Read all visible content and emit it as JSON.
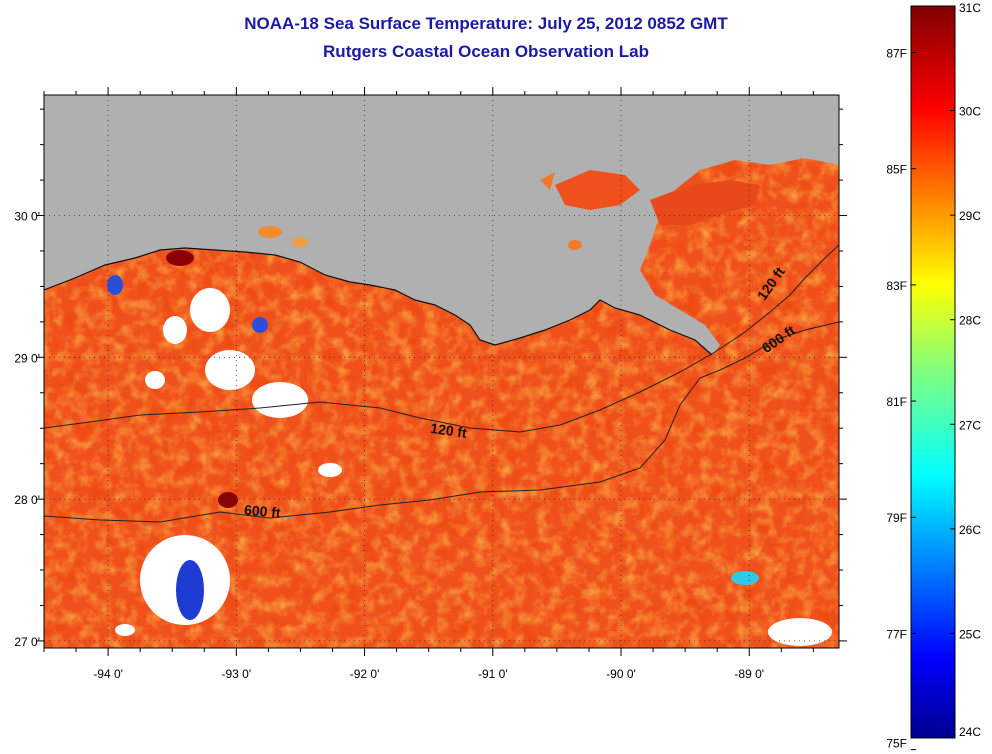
{
  "title": {
    "line1": "NOAA-18 Sea Surface Temperature:  July 25, 2012 0852 GMT",
    "line2": "Rutgers Coastal Ocean Observation Lab"
  },
  "map": {
    "lon_range": [
      -94.5,
      -88.3
    ],
    "lat_range": [
      26.95,
      30.85
    ],
    "lon_ticks": [
      {
        "value": -94,
        "label": "-94 0'"
      },
      {
        "value": -93,
        "label": "-93 0'"
      },
      {
        "value": -92,
        "label": "-92 0'"
      },
      {
        "value": -91,
        "label": "-91 0'"
      },
      {
        "value": -90,
        "label": "-90 0'"
      },
      {
        "value": -89,
        "label": "-89 0'"
      }
    ],
    "lat_ticks": [
      {
        "value": 30,
        "label": "30 0'"
      },
      {
        "value": 29,
        "label": "29 0'"
      },
      {
        "value": 28,
        "label": "28 0'"
      },
      {
        "value": 27,
        "label": "27 0'"
      }
    ],
    "contour_labels": [
      {
        "text": "120 ft",
        "lon": -91.35,
        "lat": 28.45,
        "angle": 8
      },
      {
        "text": "600 ft",
        "lon": -92.8,
        "lat": 27.88,
        "angle": 5
      },
      {
        "text": "120 ft",
        "lon": -88.8,
        "lat": 29.5,
        "angle": -55
      },
      {
        "text": "600 ft",
        "lon": -88.75,
        "lat": 29.1,
        "angle": -35
      }
    ],
    "colors": {
      "land": "#b0b0b0",
      "ocean_base": "#f0501c",
      "cloud": "#ffffff"
    }
  },
  "colorbar": {
    "min_c": 24,
    "max_c": 31,
    "celsius_labels": [
      "31C",
      "30C",
      "29C",
      "28C",
      "27C",
      "26C",
      "25C",
      "24C"
    ],
    "fahrenheit_labels": [
      "87F",
      "85F",
      "83F",
      "81F",
      "79F",
      "77F",
      "75F"
    ]
  }
}
